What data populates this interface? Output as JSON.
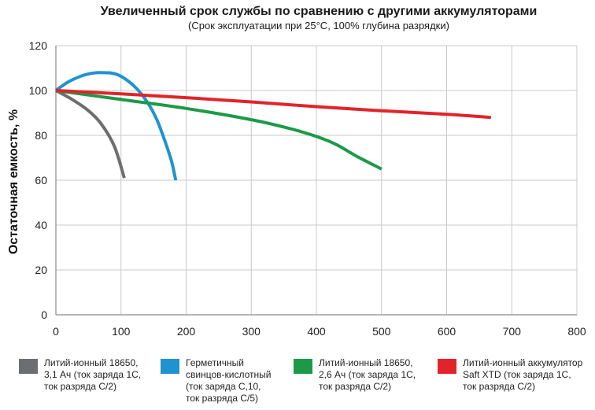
{
  "chart_data": {
    "type": "line",
    "title": "Увеличенный срок службы по сравнению с другими аккумуляторами",
    "subtitle": "(Срок эксплуатации при  25°C, 100% глубина разрядки)",
    "ylabel": "Остаточная емкость, %",
    "xlabel": "",
    "xlim": [
      0,
      800
    ],
    "ylim": [
      0,
      120
    ],
    "xticks": [
      "0",
      "100",
      "200",
      "300",
      "400",
      "500",
      "600",
      "700",
      "800"
    ],
    "yticks": [
      "0",
      "20",
      "40",
      "60",
      "80",
      "100",
      "120"
    ],
    "grid": true,
    "legend_position": "bottom",
    "series": [
      {
        "name": "Литий-ионный 18650,\n3,1 Ач (ток заряда 1С,\nток разряда С/2)",
        "color": "#6d6e71",
        "points": [
          [
            0,
            100
          ],
          [
            25,
            96
          ],
          [
            50,
            91
          ],
          [
            70,
            85
          ],
          [
            90,
            75
          ],
          [
            105,
            61
          ]
        ]
      },
      {
        "name": "Герметичный\nсвинцов-кислотный\n(ток заряда С,10,\nток разряда С/5)",
        "color": "#1f93cf",
        "points": [
          [
            0,
            100
          ],
          [
            20,
            104
          ],
          [
            45,
            107
          ],
          [
            68,
            108
          ],
          [
            95,
            107
          ],
          [
            120,
            102
          ],
          [
            140,
            95
          ],
          [
            155,
            87
          ],
          [
            168,
            77
          ],
          [
            178,
            68
          ],
          [
            184,
            60
          ]
        ]
      },
      {
        "name": "Литий-ионный 18650,\n2,6 Ач (ток заряда 1С,\nток разряда С/2)",
        "color": "#1c9a48",
        "points": [
          [
            0,
            100
          ],
          [
            100,
            96
          ],
          [
            200,
            92
          ],
          [
            300,
            87
          ],
          [
            360,
            83
          ],
          [
            400,
            79.5
          ],
          [
            430,
            76
          ],
          [
            460,
            71
          ],
          [
            500,
            65
          ]
        ]
      },
      {
        "name": "Литий-ионный аккумулятор\nSaft XTD (ток заряда 1С,\nток разряда С/2)",
        "color": "#e1242a",
        "points": [
          [
            0,
            100
          ],
          [
            100,
            98.5
          ],
          [
            200,
            96.8
          ],
          [
            300,
            94.9
          ],
          [
            400,
            92.8
          ],
          [
            500,
            91
          ],
          [
            600,
            89.4
          ],
          [
            668,
            88
          ]
        ]
      }
    ]
  }
}
